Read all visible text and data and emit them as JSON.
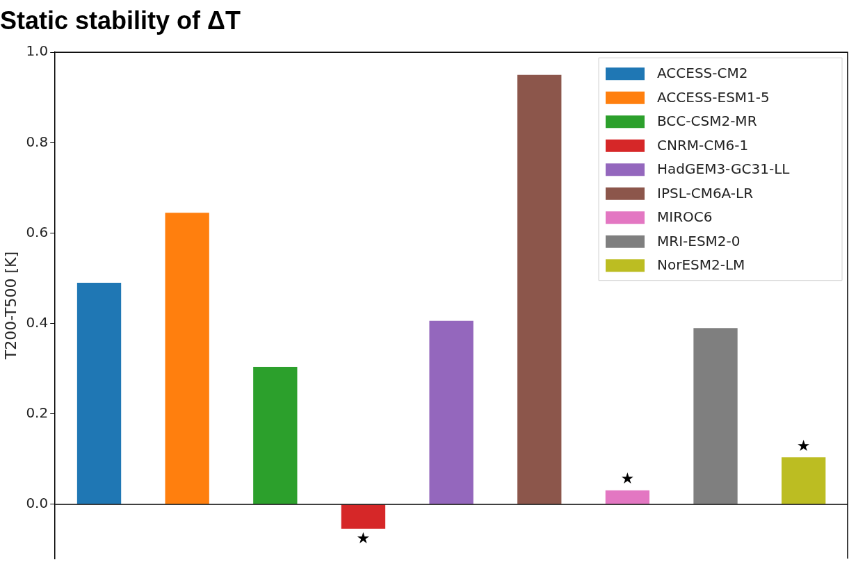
{
  "chart_data": {
    "type": "bar",
    "title": "Static stability of ΔT",
    "ylabel": "T200-T500 [K]",
    "categories": [
      null,
      null,
      null,
      null,
      null,
      null,
      null,
      null,
      null
    ],
    "series": [
      {
        "name": "ACCESS-CM2",
        "color": "#1f77b4",
        "values": [
          0.49,
          null,
          null,
          null,
          null,
          null,
          null,
          null,
          null
        ]
      },
      {
        "name": "ACCESS-ESM1-5",
        "color": "#ff7f0e",
        "values": [
          null,
          0.645,
          null,
          null,
          null,
          null,
          null,
          null,
          null
        ]
      },
      {
        "name": "BCC-CSM2-MR",
        "color": "#2ca02c",
        "values": [
          null,
          null,
          0.304,
          null,
          null,
          null,
          null,
          null,
          null
        ]
      },
      {
        "name": "CNRM-CM6-1",
        "color": "#d62728",
        "values": [
          null,
          null,
          null,
          -0.054,
          null,
          null,
          null,
          null,
          null
        ],
        "value_labels": [
          null,
          null,
          null,
          "★",
          null,
          null,
          null,
          null,
          null
        ]
      },
      {
        "name": "HadGEM3-GC31-LL",
        "color": "#9467bd",
        "values": [
          null,
          null,
          null,
          null,
          0.406,
          null,
          null,
          null,
          null
        ]
      },
      {
        "name": "IPSL-CM6A-LR",
        "color": "#8c564b",
        "values": [
          null,
          null,
          null,
          null,
          null,
          0.95,
          null,
          null,
          null
        ]
      },
      {
        "name": "MIROC6",
        "color": "#e377c2",
        "values": [
          null,
          null,
          null,
          null,
          null,
          null,
          0.031,
          null,
          null
        ],
        "value_labels": [
          null,
          null,
          null,
          null,
          null,
          null,
          "★",
          null,
          null
        ]
      },
      {
        "name": "MRI-ESM2-0",
        "color": "#7f7f7f",
        "values": [
          null,
          null,
          null,
          null,
          null,
          null,
          null,
          0.39,
          null
        ]
      },
      {
        "name": "NorESM2-LM",
        "color": "#bcbd22",
        "values": [
          null,
          null,
          null,
          null,
          null,
          null,
          null,
          null,
          0.104
        ],
        "value_labels": [
          null,
          null,
          null,
          null,
          null,
          null,
          null,
          null,
          "★"
        ]
      }
    ],
    "ylim": [
      -0.12,
      1.0
    ],
    "yticks": [
      {
        "value": 0,
        "label": "0.0"
      },
      {
        "value": 0.2,
        "label": "0.2"
      },
      {
        "value": 0.4,
        "label": "0.4"
      },
      {
        "value": 0.6,
        "label": "0.6"
      },
      {
        "value": 0.8,
        "label": "0.8"
      },
      {
        "value": 1,
        "label": "1.0"
      }
    ],
    "ref_lines": [
      {
        "axis": "y",
        "value": 0,
        "color": "#000000"
      }
    ],
    "tick_labels": "y",
    "grid": false,
    "legend": "top right"
  }
}
